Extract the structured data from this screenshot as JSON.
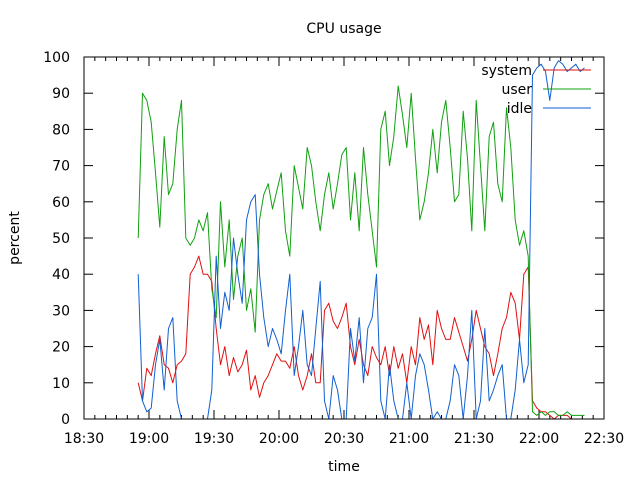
{
  "chart_data": {
    "type": "line",
    "title": "CPU usage",
    "xlabel": "time",
    "ylabel": "percent",
    "xlim": [
      0,
      240
    ],
    "ylim": [
      0,
      100
    ],
    "x_ticks": [
      {
        "value": 0,
        "label": "18:30"
      },
      {
        "value": 30,
        "label": "19:00"
      },
      {
        "value": 60,
        "label": "19:30"
      },
      {
        "value": 90,
        "label": "20:00"
      },
      {
        "value": 120,
        "label": "20:30"
      },
      {
        "value": 150,
        "label": "21:00"
      },
      {
        "value": 180,
        "label": "21:30"
      },
      {
        "value": 210,
        "label": "22:00"
      },
      {
        "value": 240,
        "label": "22:30"
      }
    ],
    "y_ticks": [
      0,
      10,
      20,
      30,
      40,
      50,
      60,
      70,
      80,
      90,
      100
    ],
    "x_unit": "minutes since 18:30",
    "legend_position": "top-right",
    "series": [
      {
        "name": "system",
        "color": "#e01010",
        "x": [
          25,
          27,
          29,
          31,
          33,
          35,
          37,
          39,
          41,
          43,
          45,
          47,
          49,
          51,
          53,
          55,
          57,
          59,
          61,
          63,
          65,
          67,
          69,
          71,
          73,
          75,
          77,
          79,
          81,
          83,
          85,
          87,
          89,
          91,
          93,
          95,
          97,
          99,
          101,
          103,
          105,
          107,
          109,
          111,
          113,
          115,
          117,
          119,
          121,
          123,
          125,
          127,
          129,
          131,
          133,
          135,
          137,
          139,
          141,
          143,
          145,
          147,
          149,
          151,
          153,
          155,
          157,
          159,
          161,
          163,
          165,
          167,
          169,
          171,
          173,
          175,
          177,
          179,
          181,
          183,
          185,
          187,
          189,
          191,
          193,
          195,
          197,
          199,
          201,
          203,
          205,
          207,
          209,
          211,
          213,
          215,
          217,
          219,
          221,
          223,
          225,
          227,
          229,
          231
        ],
        "values": [
          10,
          5,
          14,
          12,
          18,
          23,
          15,
          14,
          10,
          15,
          16,
          18,
          40,
          42,
          45,
          40,
          40,
          38,
          25,
          15,
          20,
          12,
          17,
          13,
          15,
          19,
          8,
          12,
          6,
          10,
          12,
          15,
          18,
          16,
          16,
          14,
          20,
          12,
          8,
          12,
          18,
          10,
          10,
          30,
          32,
          27,
          25,
          28,
          32,
          20,
          15,
          22,
          15,
          12,
          20,
          17,
          15,
          20,
          12,
          20,
          14,
          18,
          10,
          20,
          15,
          28,
          22,
          26,
          15,
          30,
          25,
          22,
          22,
          28,
          24,
          20,
          16,
          22,
          30,
          25,
          20,
          18,
          12,
          18,
          25,
          28,
          35,
          32,
          22,
          40,
          42,
          5,
          3,
          2,
          2,
          1,
          0,
          1,
          1,
          1,
          0,
          0,
          0,
          0
        ]
      },
      {
        "name": "user",
        "color": "#10a010",
        "x": [
          25,
          27,
          29,
          31,
          33,
          35,
          37,
          39,
          41,
          43,
          45,
          47,
          49,
          51,
          53,
          55,
          57,
          59,
          61,
          63,
          65,
          67,
          69,
          71,
          73,
          75,
          77,
          79,
          81,
          83,
          85,
          87,
          89,
          91,
          93,
          95,
          97,
          99,
          101,
          103,
          105,
          107,
          109,
          111,
          113,
          115,
          117,
          119,
          121,
          123,
          125,
          127,
          129,
          131,
          133,
          135,
          137,
          139,
          141,
          143,
          145,
          147,
          149,
          151,
          153,
          155,
          157,
          159,
          161,
          163,
          165,
          167,
          169,
          171,
          173,
          175,
          177,
          179,
          181,
          183,
          185,
          187,
          189,
          191,
          193,
          195,
          197,
          199,
          201,
          203,
          205,
          207,
          209,
          211,
          213,
          215,
          217,
          219,
          221,
          223,
          225,
          227,
          229,
          231
        ],
        "values": [
          50,
          90,
          88,
          82,
          68,
          53,
          78,
          62,
          65,
          80,
          88,
          50,
          48,
          50,
          55,
          52,
          57,
          36,
          28,
          60,
          42,
          55,
          33,
          45,
          50,
          30,
          36,
          24,
          55,
          62,
          65,
          58,
          63,
          68,
          52,
          45,
          70,
          64,
          58,
          75,
          70,
          60,
          52,
          62,
          68,
          58,
          65,
          73,
          75,
          55,
          68,
          52,
          75,
          62,
          52,
          42,
          80,
          85,
          70,
          78,
          92,
          84,
          75,
          90,
          72,
          55,
          60,
          68,
          80,
          68,
          82,
          88,
          75,
          60,
          62,
          85,
          72,
          52,
          88,
          70,
          52,
          78,
          82,
          65,
          60,
          86,
          75,
          55,
          48,
          52,
          45,
          2,
          1,
          2,
          1,
          2,
          2,
          1,
          1,
          2,
          1,
          1,
          1,
          1
        ]
      },
      {
        "name": "idle",
        "color": "#1060d0",
        "x": [
          25,
          27,
          29,
          31,
          33,
          35,
          37,
          39,
          41,
          43,
          45,
          47,
          49,
          51,
          53,
          55,
          57,
          59,
          61,
          63,
          65,
          67,
          69,
          71,
          73,
          75,
          77,
          79,
          81,
          83,
          85,
          87,
          89,
          91,
          93,
          95,
          97,
          99,
          101,
          103,
          105,
          107,
          109,
          111,
          113,
          115,
          117,
          119,
          121,
          123,
          125,
          127,
          129,
          131,
          133,
          135,
          137,
          139,
          141,
          143,
          145,
          147,
          149,
          151,
          153,
          155,
          157,
          159,
          161,
          163,
          165,
          167,
          169,
          171,
          173,
          175,
          177,
          179,
          181,
          183,
          185,
          187,
          189,
          191,
          193,
          195,
          197,
          199,
          201,
          203,
          205,
          207,
          209,
          211,
          213,
          215,
          217,
          219,
          221,
          223,
          225,
          227,
          229,
          231
        ],
        "values": [
          40,
          5,
          2,
          3,
          15,
          22,
          8,
          25,
          28,
          5,
          0,
          0,
          0,
          0,
          0,
          0,
          0,
          8,
          45,
          25,
          35,
          30,
          50,
          40,
          32,
          55,
          60,
          62,
          40,
          28,
          20,
          25,
          22,
          18,
          30,
          40,
          12,
          20,
          30,
          15,
          12,
          25,
          38,
          5,
          0,
          12,
          8,
          0,
          0,
          25,
          16,
          28,
          10,
          25,
          28,
          40,
          5,
          0,
          15,
          5,
          0,
          0,
          10,
          0,
          12,
          18,
          15,
          8,
          0,
          2,
          0,
          0,
          5,
          15,
          12,
          0,
          12,
          30,
          0,
          5,
          25,
          5,
          8,
          12,
          15,
          0,
          0,
          8,
          22,
          10,
          15,
          95,
          97,
          98,
          96,
          88,
          97,
          99,
          98,
          96,
          97,
          98,
          96,
          97
        ]
      }
    ]
  }
}
